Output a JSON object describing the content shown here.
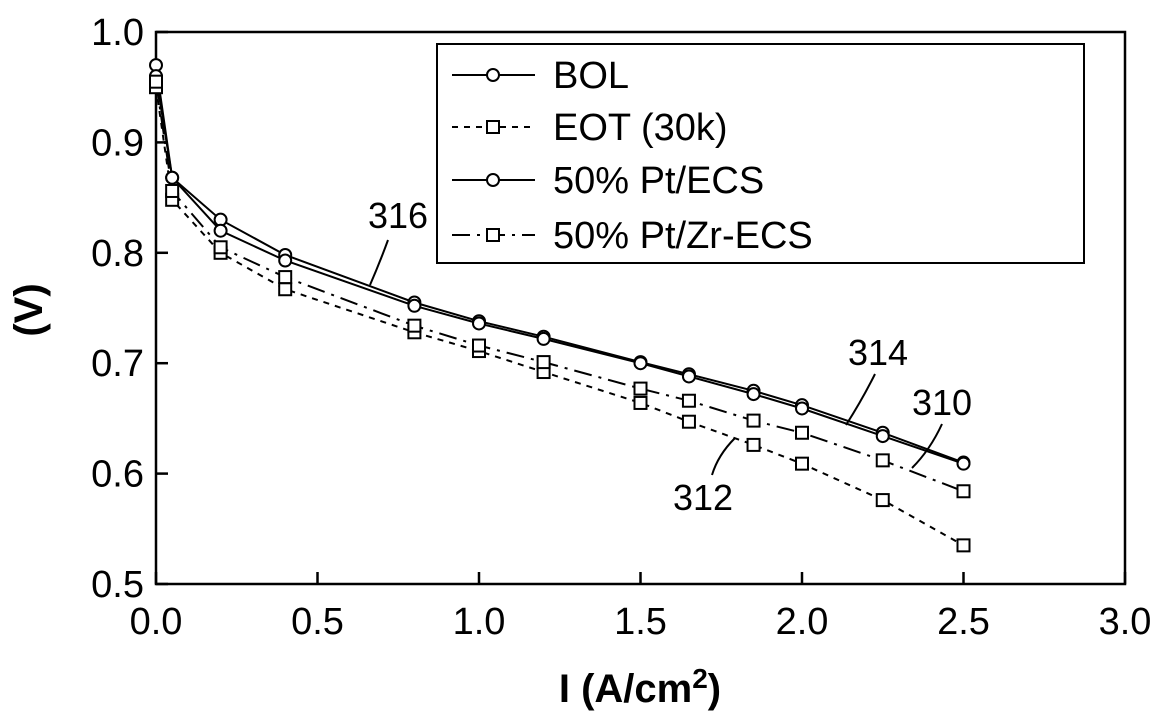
{
  "chart_data": {
    "type": "line",
    "xlabel": "I (A/cm",
    "xlabel_sup": "2",
    "xlabel_end": ")",
    "ylabel": "(V)",
    "xlim": [
      0,
      3
    ],
    "ylim": [
      0.5,
      1.0
    ],
    "x_ticks": [
      "0.0",
      "0.5",
      "1.0",
      "1.5",
      "2.0",
      "2.5",
      "3.0"
    ],
    "y_ticks": [
      "0.5",
      "0.6",
      "0.7",
      "0.8",
      "0.9",
      "1.0"
    ],
    "grid": false,
    "legend_position": "top-right",
    "series": [
      {
        "name": "BOL",
        "marker": "circle",
        "line": "solid",
        "x": [
          0.0,
          0.05,
          0.2,
          0.4,
          0.8,
          1.0,
          1.2,
          1.5,
          1.65,
          1.85,
          2.0,
          2.25,
          2.5
        ],
        "y": [
          0.97,
          0.868,
          0.83,
          0.798,
          0.755,
          0.738,
          0.724,
          0.701,
          0.69,
          0.675,
          0.662,
          0.637,
          0.61
        ]
      },
      {
        "name": "EOT (30k)",
        "marker": "square",
        "line": "dotted",
        "x": [
          0.0,
          0.05,
          0.2,
          0.4,
          0.8,
          1.0,
          1.2,
          1.5,
          1.65,
          1.85,
          2.0,
          2.25,
          2.5
        ],
        "y": [
          0.95,
          0.848,
          0.8,
          0.767,
          0.728,
          0.711,
          0.692,
          0.664,
          0.647,
          0.626,
          0.609,
          0.576,
          0.535
        ]
      },
      {
        "name": "50% Pt/ECS",
        "marker": "circle",
        "line": "solid",
        "x": [
          0.0,
          0.05,
          0.2,
          0.4,
          0.8,
          1.0,
          1.2,
          1.5,
          1.65,
          1.85,
          2.0,
          2.25,
          2.5
        ],
        "y": [
          0.96,
          0.868,
          0.82,
          0.793,
          0.752,
          0.736,
          0.722,
          0.7,
          0.688,
          0.672,
          0.659,
          0.634,
          0.609
        ]
      },
      {
        "name": "50% Pt/Zr-ECS",
        "marker": "square",
        "line": "dashdot",
        "x": [
          0.0,
          0.05,
          0.2,
          0.4,
          0.8,
          1.0,
          1.2,
          1.5,
          1.65,
          1.85,
          2.0,
          2.25,
          2.5
        ],
        "y": [
          0.955,
          0.856,
          0.805,
          0.778,
          0.734,
          0.716,
          0.701,
          0.677,
          0.666,
          0.648,
          0.637,
          0.612,
          0.584
        ]
      }
    ],
    "annotations": [
      {
        "text": "316",
        "x": 0.66,
        "y": 0.785
      },
      {
        "text": "314",
        "x": 2.19,
        "y": 0.7
      },
      {
        "text": "310",
        "x": 2.42,
        "y": 0.66
      },
      {
        "text": "312",
        "x": 1.7,
        "y": 0.595
      }
    ]
  }
}
